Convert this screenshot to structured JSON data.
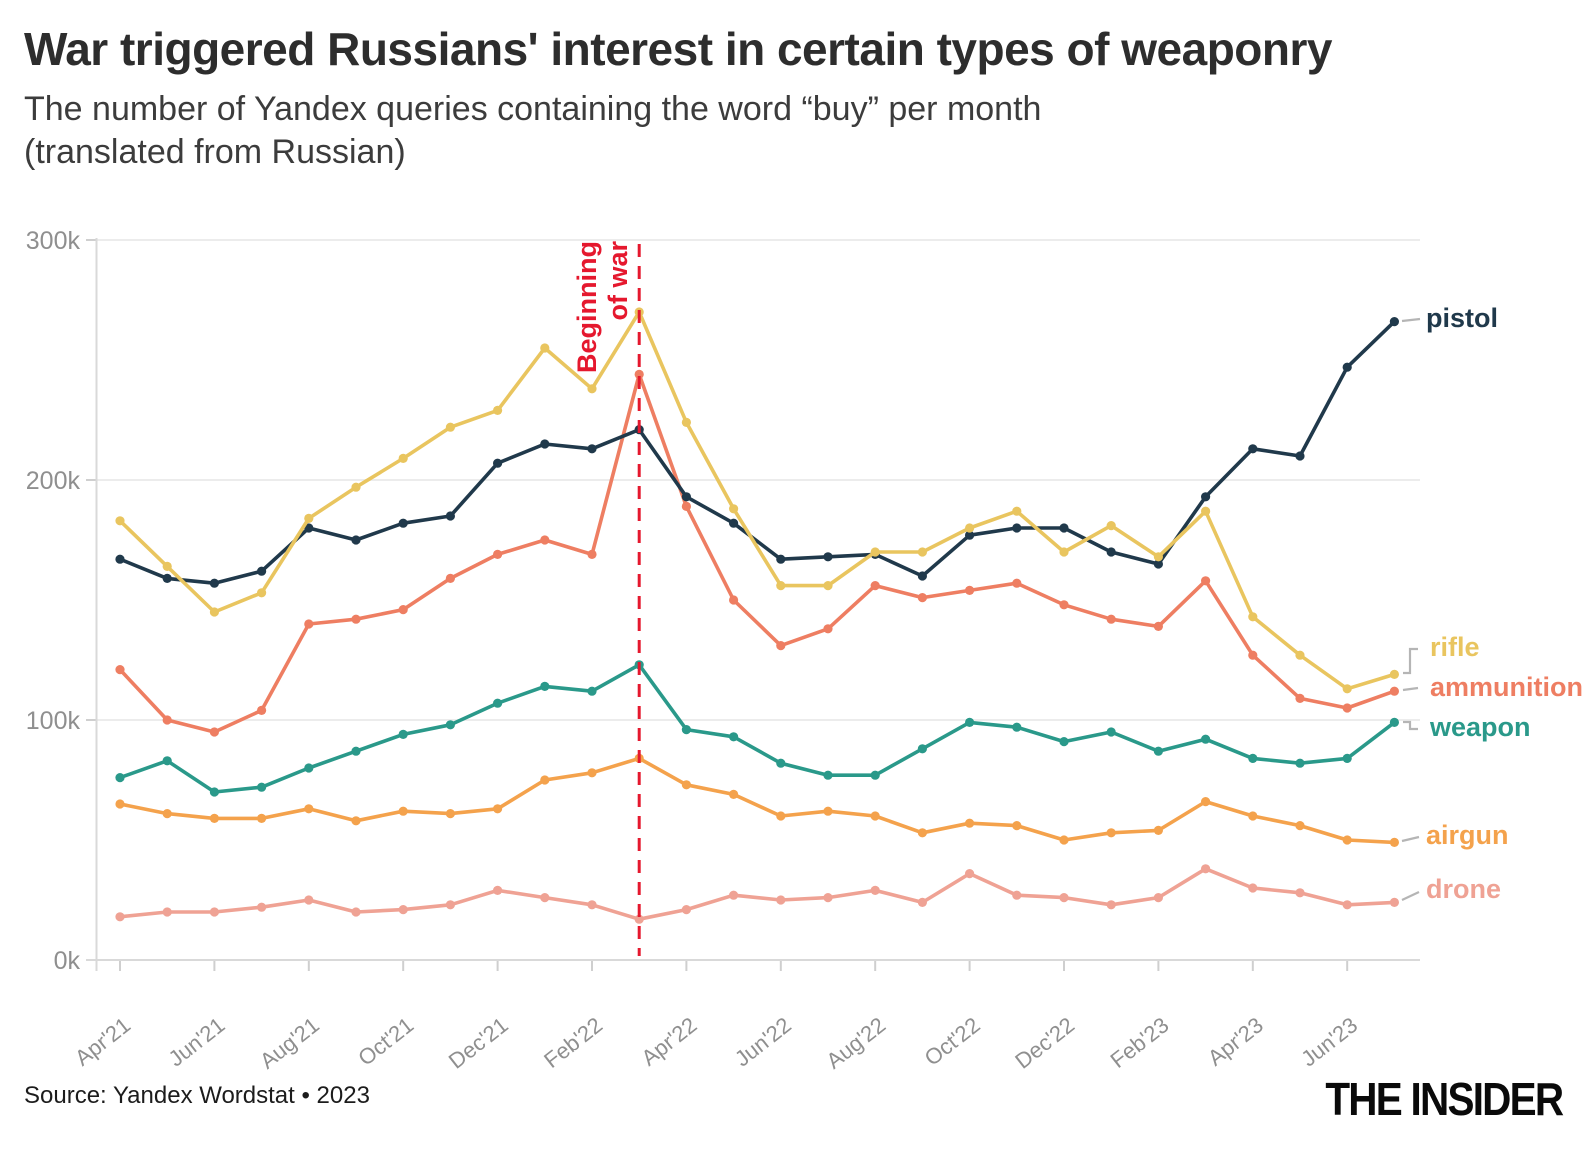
{
  "header": {
    "title": "War triggered Russians' interest in certain types of weaponry",
    "subtitle_line1": "The number of Yandex queries containing the word “buy” per month",
    "subtitle_line2": "(translated from Russian)"
  },
  "footer": {
    "source": "Source: Yandex Wordstat • 2023",
    "logo": "THE INSIDER"
  },
  "annotation": {
    "line1": "Beginning",
    "line2": "of war",
    "color": "#e5182e",
    "x_label": "Mar'22"
  },
  "chart_data": {
    "type": "line",
    "title": "War triggered Russians' interest in certain types of weaponry",
    "y_unit": "thousands of queries per month",
    "ylim": [
      0,
      300
    ],
    "grid": true,
    "legend_position": "right",
    "x": [
      "Apr'21",
      "May'21",
      "Jun'21",
      "Jul'21",
      "Aug'21",
      "Sep'21",
      "Oct'21",
      "Nov'21",
      "Dec'21",
      "Jan'22",
      "Feb'22",
      "Mar'22",
      "Apr'22",
      "May'22",
      "Jun'22",
      "Jul'22",
      "Aug'22",
      "Sep'22",
      "Oct'22",
      "Nov'22",
      "Dec'22",
      "Jan'23",
      "Feb'23",
      "Mar'23",
      "Apr'23",
      "May'23",
      "Jun'23",
      "Jul'23"
    ],
    "x_tick_labels": [
      "Apr'21",
      "Jun'21",
      "Aug'21",
      "Oct'21",
      "Dec'21",
      "Feb'22",
      "Apr'22",
      "Jun'22",
      "Aug'22",
      "Oct'22",
      "Dec'22",
      "Feb'23",
      "Apr'23",
      "Jun'23"
    ],
    "y_ticks": [
      {
        "label": "0k",
        "value": 0
      },
      {
        "label": "100k",
        "value": 100
      },
      {
        "label": "200k",
        "value": 200
      },
      {
        "label": "300k",
        "value": 300
      }
    ],
    "annotation_x_index": 11,
    "series": [
      {
        "name": "drone",
        "color": "#efa294",
        "values": [
          18,
          20,
          20,
          22,
          25,
          20,
          21,
          23,
          29,
          26,
          23,
          17,
          21,
          27,
          25,
          26,
          29,
          24,
          36,
          27,
          26,
          23,
          26,
          38,
          30,
          28,
          23,
          24
        ]
      },
      {
        "name": "airgun",
        "color": "#f4a24c",
        "values": [
          65,
          61,
          59,
          59,
          63,
          58,
          62,
          61,
          63,
          75,
          78,
          84,
          73,
          69,
          60,
          62,
          60,
          53,
          57,
          56,
          50,
          53,
          54,
          66,
          60,
          56,
          50,
          49
        ]
      },
      {
        "name": "weapon",
        "color": "#2a998a",
        "values": [
          76,
          83,
          70,
          72,
          80,
          87,
          94,
          98,
          107,
          114,
          112,
          123,
          96,
          93,
          82,
          77,
          77,
          88,
          99,
          97,
          91,
          95,
          87,
          92,
          84,
          82,
          84,
          99
        ]
      },
      {
        "name": "ammunition",
        "color": "#ee7e62",
        "values": [
          121,
          100,
          95,
          104,
          140,
          142,
          146,
          159,
          169,
          175,
          169,
          244,
          189,
          150,
          131,
          138,
          156,
          151,
          154,
          157,
          148,
          142,
          139,
          158,
          127,
          109,
          105,
          112
        ]
      },
      {
        "name": "pistol",
        "color": "#20394b",
        "values": [
          167,
          159,
          157,
          162,
          180,
          175,
          182,
          185,
          207,
          215,
          213,
          221,
          193,
          182,
          167,
          168,
          169,
          160,
          177,
          180,
          180,
          170,
          165,
          193,
          213,
          210,
          247,
          266
        ]
      },
      {
        "name": "rifle",
        "color": "#e9c55f",
        "values": [
          183,
          164,
          145,
          153,
          184,
          197,
          209,
          222,
          229,
          255,
          238,
          270,
          224,
          188,
          156,
          156,
          170,
          170,
          180,
          187,
          170,
          181,
          168,
          187,
          143,
          127,
          113,
          119
        ]
      }
    ]
  }
}
